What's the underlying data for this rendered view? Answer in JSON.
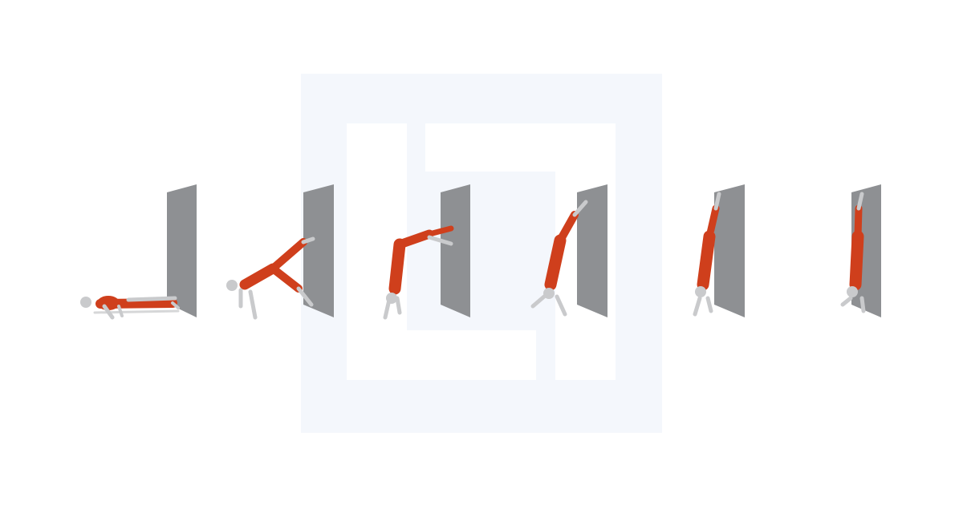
{
  "figure": {
    "title": "",
    "stage_count": 6,
    "stages": [
      {
        "pose": "plank-at-wall"
      },
      {
        "pose": "pike-one-leg-raised"
      },
      {
        "pose": "feet-on-wall-pike"
      },
      {
        "pose": "walking-up-wall"
      },
      {
        "pose": "near-vertical"
      },
      {
        "pose": "wall-handstand"
      }
    ]
  },
  "colors": {
    "background": "#ffffff",
    "watermark": "#f4f7fc",
    "wall": "#8e9093",
    "wall_edge": "#a9abae",
    "muscle": "#cf3f1c",
    "skin": "#c9cacc",
    "shade": "#8a8c90"
  },
  "icons": {
    "watermark": "logo-watermark-icon",
    "figure": "anatomy-figure-icon",
    "wall": "wall-panel-icon"
  }
}
